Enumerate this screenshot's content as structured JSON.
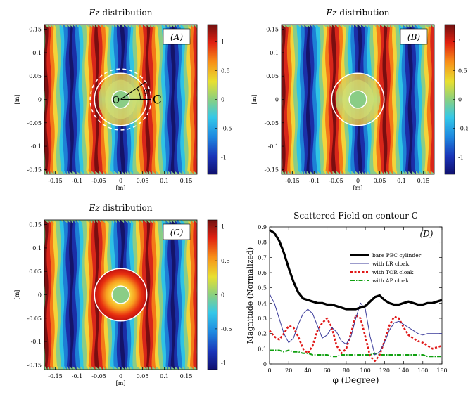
{
  "chart_data": [
    {
      "type": "heatmap",
      "panel": "A",
      "title_italic": "Ez",
      "title_rest": " distribution",
      "panel_label": "(A)",
      "xlabel": "[m]",
      "ylabel": "[m]",
      "xlim": [
        -0.175,
        0.175
      ],
      "ylim": [
        -0.16,
        0.16
      ],
      "xticks": [
        "-0.15",
        "-0.1",
        "-0.05",
        "0",
        "0.05",
        "0.1",
        "0.15"
      ],
      "xtick_values": [
        -0.15,
        -0.1,
        -0.05,
        0,
        0.05,
        0.1,
        0.15
      ],
      "yticks": [
        "0.15",
        "0.1",
        "0.05",
        "0",
        "-0.05",
        "-0.1",
        "-0.15"
      ],
      "ytick_values": [
        0.15,
        0.1,
        0.05,
        0,
        -0.05,
        -0.1,
        -0.15
      ],
      "colorbar_ticks": [
        "1",
        "0.5",
        "0",
        "-0.5",
        "-1"
      ],
      "colorbar_values": [
        1,
        0.5,
        0,
        -0.5,
        -1
      ],
      "colorbar_range": [
        -1.3,
        1.3
      ],
      "pec_radius": 0.02,
      "cloak_radius": 0.06,
      "contour_radius": 0.07,
      "annotations": {
        "origin": "O",
        "contour": "C",
        "angle": "φ"
      }
    },
    {
      "type": "heatmap",
      "panel": "B",
      "title_italic": "Ez",
      "title_rest": " distribution",
      "panel_label": "(B)",
      "xlabel": "[m]",
      "ylabel": "[m]",
      "xlim": [
        -0.175,
        0.175
      ],
      "ylim": [
        -0.16,
        0.16
      ],
      "xticks": [
        "-0.15",
        "-0.1",
        "-0.05",
        "0",
        "0.05",
        "0.1",
        "0.15"
      ],
      "xtick_values": [
        -0.15,
        -0.1,
        -0.05,
        0,
        0.05,
        0.1,
        0.15
      ],
      "yticks": [
        "0.15",
        "0.1",
        "0.05",
        "0",
        "-0.05",
        "-0.1",
        "-0.15"
      ],
      "ytick_values": [
        0.15,
        0.1,
        0.05,
        0,
        -0.05,
        -0.1,
        -0.15
      ],
      "colorbar_ticks": [
        "1",
        "0.5",
        "0",
        "-0.5",
        "-1"
      ],
      "colorbar_values": [
        1,
        0.5,
        0,
        -0.5,
        -1
      ],
      "colorbar_range": [
        -1.3,
        1.3
      ],
      "pec_radius": 0.02,
      "cloak_radius": 0.06
    },
    {
      "type": "heatmap",
      "panel": "C",
      "title_italic": "Ez",
      "title_rest": " distribution",
      "panel_label": "(C)",
      "xlabel": "[m]",
      "ylabel": "[m]",
      "xlim": [
        -0.175,
        0.175
      ],
      "ylim": [
        -0.16,
        0.16
      ],
      "xticks": [
        "-0.15",
        "-0.1",
        "-0.05",
        "0",
        "0.05",
        "0.1",
        "0.15"
      ],
      "xtick_values": [
        -0.15,
        -0.1,
        -0.05,
        0,
        0.05,
        0.1,
        0.15
      ],
      "yticks": [
        "0.15",
        "0.1",
        "0.05",
        "0",
        "-0.05",
        "-0.1",
        "-0.15"
      ],
      "ytick_values": [
        0.15,
        0.1,
        0.05,
        0,
        -0.05,
        -0.1,
        -0.15
      ],
      "colorbar_ticks": [
        "1",
        "0.5",
        "0",
        "-0.5",
        "-1"
      ],
      "colorbar_values": [
        1,
        0.5,
        0,
        -0.5,
        -1
      ],
      "colorbar_range": [
        -1.1,
        1.1
      ],
      "pec_radius": 0.02,
      "cloak_radius": 0.06
    },
    {
      "type": "line",
      "panel": "D",
      "title": "Scattered Field on contour C",
      "panel_label": "(D)",
      "xlabel": "φ (Degree)",
      "ylabel": "Magnitude (Normalized)",
      "xlim": [
        0,
        180
      ],
      "ylim": [
        0,
        0.9
      ],
      "xticks": [
        "0",
        "20",
        "40",
        "60",
        "80",
        "100",
        "120",
        "140",
        "160",
        "180"
      ],
      "xtick_values": [
        0,
        20,
        40,
        60,
        80,
        100,
        120,
        140,
        160,
        180
      ],
      "yticks": [
        "0",
        "0.1",
        "0.2",
        "0.3",
        "0.4",
        "0.5",
        "0.6",
        "0.7",
        "0.8",
        "0.9"
      ],
      "ytick_values": [
        0,
        0.1,
        0.2,
        0.3,
        0.4,
        0.5,
        0.6,
        0.7,
        0.8,
        0.9
      ],
      "x": [
        0,
        5,
        10,
        15,
        20,
        25,
        30,
        35,
        40,
        45,
        50,
        55,
        60,
        65,
        70,
        75,
        80,
        85,
        90,
        95,
        100,
        105,
        110,
        115,
        120,
        125,
        130,
        135,
        140,
        145,
        150,
        155,
        160,
        165,
        170,
        175,
        180
      ],
      "series": [
        {
          "name": "bare PEC cylinder",
          "color": "#000000",
          "style": "solid-thick",
          "values": [
            0.88,
            0.86,
            0.81,
            0.73,
            0.63,
            0.54,
            0.47,
            0.43,
            0.42,
            0.41,
            0.4,
            0.4,
            0.39,
            0.39,
            0.38,
            0.37,
            0.36,
            0.36,
            0.36,
            0.37,
            0.38,
            0.41,
            0.44,
            0.45,
            0.42,
            0.4,
            0.39,
            0.39,
            0.4,
            0.41,
            0.4,
            0.39,
            0.39,
            0.4,
            0.4,
            0.41,
            0.42
          ]
        },
        {
          "name": "with LR cloak",
          "color": "#3a3a9a",
          "style": "solid-thin",
          "values": [
            0.46,
            0.4,
            0.3,
            0.2,
            0.14,
            0.17,
            0.26,
            0.33,
            0.36,
            0.33,
            0.25,
            0.17,
            0.19,
            0.24,
            0.21,
            0.15,
            0.13,
            0.18,
            0.3,
            0.4,
            0.36,
            0.18,
            0.06,
            0.08,
            0.14,
            0.22,
            0.27,
            0.28,
            0.26,
            0.24,
            0.22,
            0.2,
            0.19,
            0.2,
            0.2,
            0.2,
            0.2
          ]
        },
        {
          "name": "with TOR cloak",
          "color": "#e01818",
          "style": "dotted-thick",
          "values": [
            0.22,
            0.18,
            0.16,
            0.2,
            0.25,
            0.24,
            0.18,
            0.1,
            0.07,
            0.12,
            0.22,
            0.27,
            0.3,
            0.24,
            0.12,
            0.07,
            0.1,
            0.2,
            0.32,
            0.3,
            0.18,
            0.05,
            0.02,
            0.06,
            0.15,
            0.25,
            0.31,
            0.3,
            0.24,
            0.19,
            0.17,
            0.15,
            0.14,
            0.12,
            0.1,
            0.11,
            0.12
          ]
        },
        {
          "name": "with AP cloak",
          "color": "#10a010",
          "style": "dashdot",
          "values": [
            0.09,
            0.09,
            0.09,
            0.08,
            0.09,
            0.08,
            0.08,
            0.07,
            0.07,
            0.06,
            0.06,
            0.06,
            0.06,
            0.05,
            0.05,
            0.06,
            0.06,
            0.06,
            0.06,
            0.06,
            0.06,
            0.06,
            0.07,
            0.06,
            0.06,
            0.06,
            0.06,
            0.06,
            0.06,
            0.06,
            0.06,
            0.06,
            0.06,
            0.05,
            0.05,
            0.05,
            0.05
          ]
        }
      ]
    }
  ]
}
